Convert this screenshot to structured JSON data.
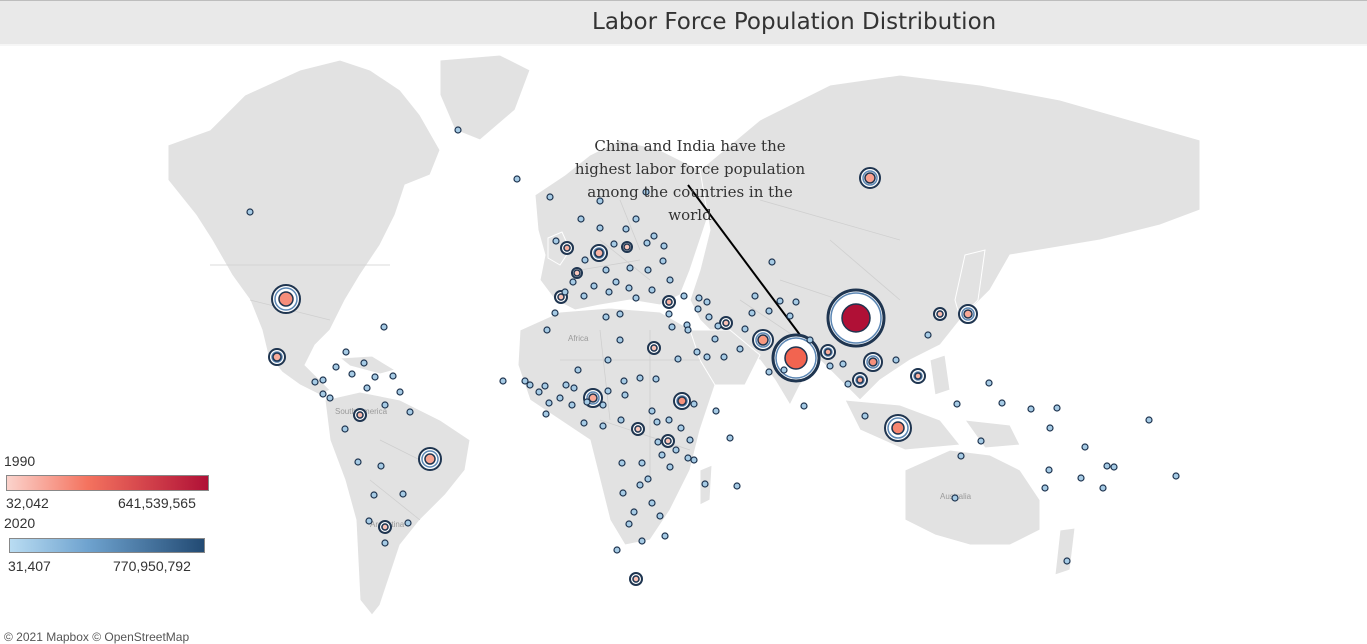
{
  "title": "Labor Force Population Distribution",
  "annotation": "China and India have the highest labor force population among the countries in the world",
  "legend": {
    "y1990": {
      "label": "1990",
      "min": "32,042",
      "max": "641,539,565",
      "color_low": "#fbd3cc",
      "color_high": "#b01036"
    },
    "y2020": {
      "label": "2020",
      "min": "31,407",
      "max": "770,950,792",
      "color_low": "#b9dcf2",
      "color_high": "#224a73"
    }
  },
  "credits": "© 2021 Mapbox © OpenStreetMap",
  "map_labels": [
    "Africa",
    "South America",
    "Argentina",
    "Australia"
  ],
  "colors": {
    "land": "#e2e2e2",
    "border": "#c9c9c9",
    "water": "#ffffff",
    "ring_outline": "#1f3550"
  }
}
